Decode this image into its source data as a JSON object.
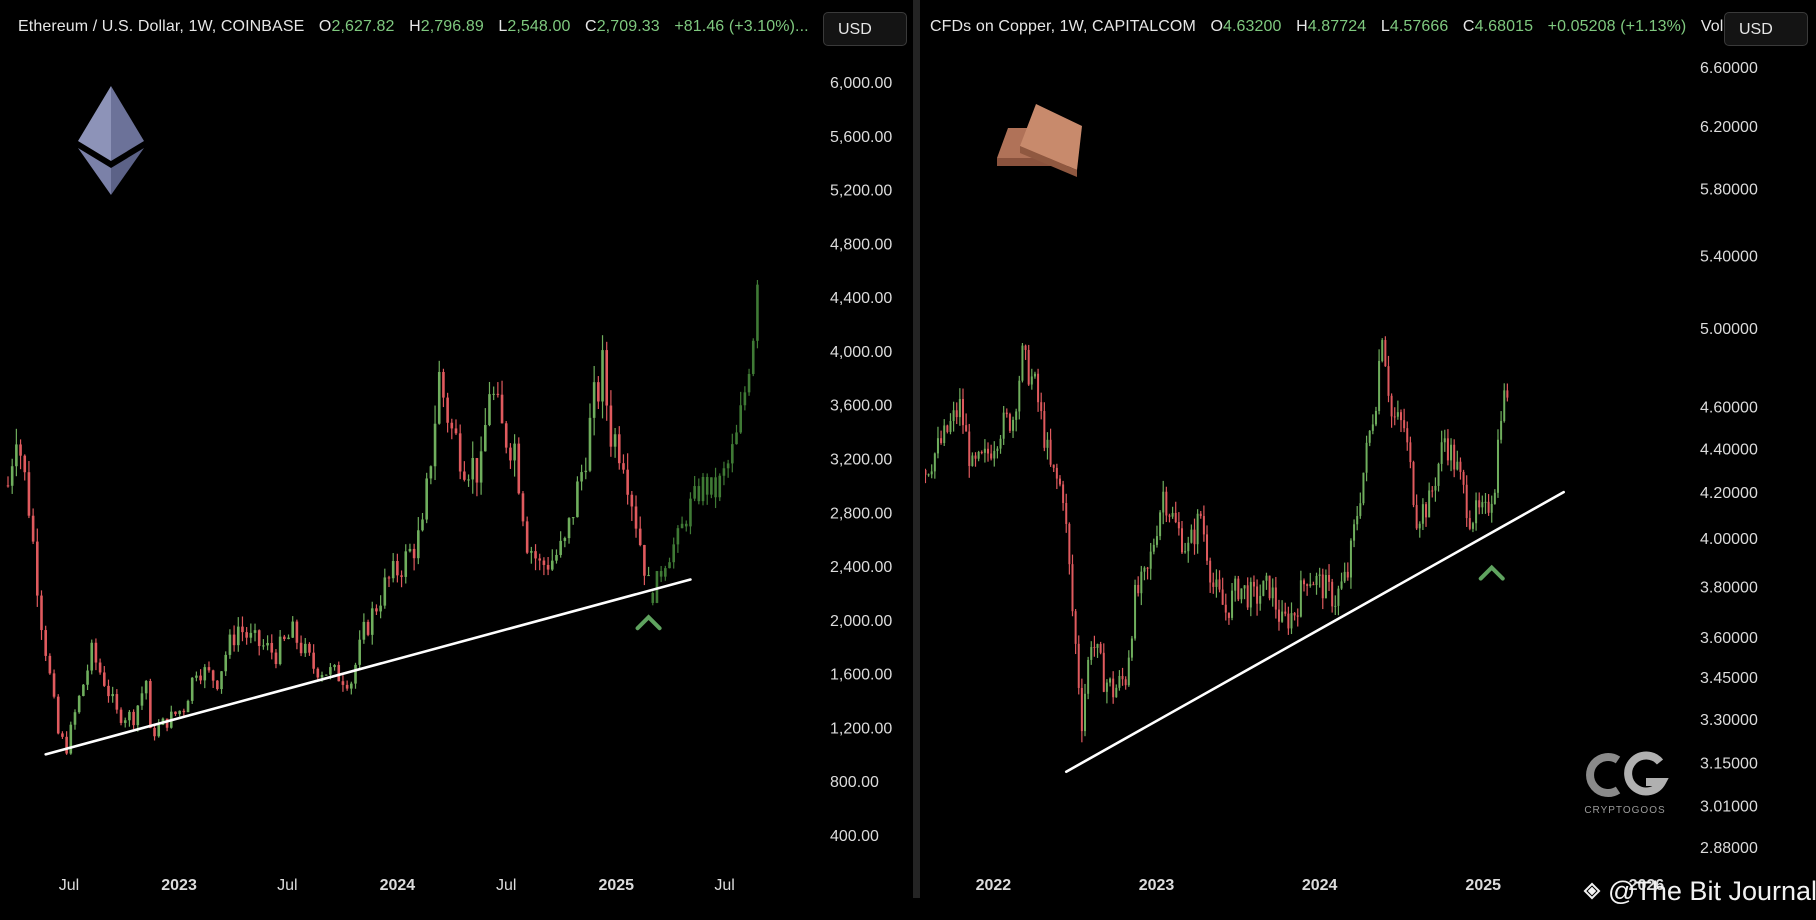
{
  "left": {
    "header": {
      "title": "Ethereum / U.S. Dollar, 1W, COINBASE",
      "o_label": "O",
      "o": "2,627.82",
      "h_label": "H",
      "h": "2,796.89",
      "l_label": "L",
      "l": "2,548.00",
      "c_label": "C",
      "c": "2,709.33",
      "change": "+81.46 (+3.10%)..."
    },
    "currency": "USD"
  },
  "right": {
    "header": {
      "title": "CFDs on Copper, 1W, CAPITALCOM",
      "o_label": "O",
      "o": "4.63200",
      "h_label": "H",
      "h": "4.87724",
      "l_label": "L",
      "l": "4.57666",
      "c_label": "C",
      "c": "4.68015",
      "change": "+0.05208 (+1.13%)",
      "extra": "Vol..."
    },
    "currency": "USD"
  },
  "watermark": "@The Bit Journal",
  "logo_text": "CRYPTOGOOS",
  "colors": {
    "up": "#6fae5d",
    "down": "#e05a5e",
    "projection": "#3f7a35",
    "trendline": "#ffffff",
    "marker": "#5fa35f"
  },
  "icons": [
    "ethereum-logo-icon",
    "copper-bars-icon",
    "cryptogoos-logo-icon",
    "binance-square-icon"
  ],
  "chart_data": [
    {
      "type": "candlestick",
      "title": "Ethereum / U.S. Dollar, 1W, COINBASE",
      "y_ticks": [
        6000,
        5600,
        5200,
        4800,
        4400,
        4000,
        3600,
        3200,
        2800,
        2400,
        2000,
        1600,
        1200,
        800,
        400
      ],
      "y_tick_labels": [
        "6,000.00",
        "5,600.00",
        "5,200.00",
        "4,800.00",
        "4,400.00",
        "4,000.00",
        "3,600.00",
        "3,200.00",
        "2,800.00",
        "2,400.00",
        "2,000.00",
        "1,600.00",
        "1,200.00",
        "800.00",
        "400.00"
      ],
      "ylim": [
        400,
        6000
      ],
      "x_tick_labels": [
        "Jul",
        "2023",
        "Jul",
        "2024",
        "Jul",
        "2025",
        "Jul"
      ],
      "x_tick_bold": [
        false,
        true,
        false,
        true,
        false,
        true,
        false
      ],
      "x_tick_dates": [
        "2022-07-01",
        "2023-01-01",
        "2023-07-01",
        "2024-01-01",
        "2024-07-01",
        "2025-01-01",
        "2025-07-01"
      ],
      "xlim": [
        "2022-03-21",
        "2025-09-15"
      ],
      "price_path": [
        [
          "2022-03-21",
          3000
        ],
        [
          "2022-04-04",
          3450
        ],
        [
          "2022-04-25",
          2850
        ],
        [
          "2022-05-16",
          2000
        ],
        [
          "2022-06-13",
          1150
        ],
        [
          "2022-06-27",
          1050
        ],
        [
          "2022-07-11",
          1300
        ],
        [
          "2022-08-08",
          1750
        ],
        [
          "2022-08-29",
          1550
        ],
        [
          "2022-09-19",
          1300
        ],
        [
          "2022-10-17",
          1280
        ],
        [
          "2022-11-07",
          1550
        ],
        [
          "2022-11-14",
          1150
        ],
        [
          "2022-12-12",
          1250
        ],
        [
          "2023-01-09",
          1350
        ],
        [
          "2023-01-30",
          1650
        ],
        [
          "2023-03-06",
          1550
        ],
        [
          "2023-03-20",
          1750
        ],
        [
          "2023-04-10",
          1950
        ],
        [
          "2023-05-01",
          1850
        ],
        [
          "2023-06-12",
          1750
        ],
        [
          "2023-07-10",
          1900
        ],
        [
          "2023-08-14",
          1650
        ],
        [
          "2023-09-18",
          1600
        ],
        [
          "2023-10-16",
          1550
        ],
        [
          "2023-11-06",
          1900
        ],
        [
          "2023-12-11",
          2250
        ],
        [
          "2024-01-15",
          2450
        ],
        [
          "2024-02-12",
          2650
        ],
        [
          "2024-03-11",
          3800
        ],
        [
          "2024-04-01",
          3400
        ],
        [
          "2024-04-22",
          3200
        ],
        [
          "2024-05-20",
          3100
        ],
        [
          "2024-06-03",
          3750
        ],
        [
          "2024-06-24",
          3400
        ],
        [
          "2024-07-15",
          3300
        ],
        [
          "2024-08-05",
          2600
        ],
        [
          "2024-08-26",
          2400
        ],
        [
          "2024-09-16",
          2450
        ],
        [
          "2024-10-07",
          2550
        ],
        [
          "2024-11-04",
          3100
        ],
        [
          "2024-11-25",
          3600
        ],
        [
          "2024-12-09",
          3850
        ],
        [
          "2024-12-23",
          3400
        ],
        [
          "2025-01-13",
          3250
        ],
        [
          "2025-02-03",
          2750
        ],
        [
          "2025-02-24",
          2250
        ]
      ],
      "projection_path": [
        [
          "2025-03-03",
          2200
        ],
        [
          "2025-03-24",
          2450
        ],
        [
          "2025-04-14",
          2600
        ],
        [
          "2025-05-05",
          2850
        ],
        [
          "2025-05-26",
          3000
        ],
        [
          "2025-06-16",
          2950
        ],
        [
          "2025-07-07",
          3150
        ],
        [
          "2025-07-21",
          3350
        ],
        [
          "2025-08-04",
          3700
        ],
        [
          "2025-08-18",
          4150
        ],
        [
          "2025-08-25",
          4600
        ]
      ],
      "trendline": {
        "start": [
          "2022-05-23",
          1000
        ],
        "end": [
          "2025-05-05",
          2300
        ]
      },
      "bounce_marker": {
        "date": "2025-02-24",
        "price": 1990
      }
    },
    {
      "type": "candlestick",
      "title": "CFDs on Copper, 1W, CAPITALCOM",
      "y_ticks": [
        6.6,
        6.2,
        5.8,
        5.4,
        5.0,
        4.6,
        4.4,
        4.2,
        4.0,
        3.8,
        3.6,
        3.45,
        3.3,
        3.15,
        3.01,
        2.88
      ],
      "y_tick_labels": [
        "6.60000",
        "6.20000",
        "5.80000",
        "5.40000",
        "5.00000",
        "4.60000",
        "4.40000",
        "4.20000",
        "4.00000",
        "3.80000",
        "3.60000",
        "3.45000",
        "3.30000",
        "3.15000",
        "3.01000",
        "2.88000"
      ],
      "y_scale": "log",
      "ylim": [
        2.88,
        6.6
      ],
      "x_tick_labels": [
        "2022",
        "2023",
        "2024",
        "2025",
        "2026"
      ],
      "x_tick_bold": [
        true,
        true,
        true,
        true,
        true
      ],
      "x_tick_dates": [
        "2022-01-01",
        "2023-01-01",
        "2024-01-01",
        "2025-01-01",
        "2026-01-01"
      ],
      "xlim": [
        "2021-08-01",
        "2026-05-01"
      ],
      "price_path": [
        [
          "2021-08-02",
          4.3
        ],
        [
          "2021-09-13",
          4.45
        ],
        [
          "2021-10-18",
          4.6
        ],
        [
          "2021-11-15",
          4.3
        ],
        [
          "2021-12-13",
          4.35
        ],
        [
          "2022-01-17",
          4.5
        ],
        [
          "2022-02-14",
          4.55
        ],
        [
          "2022-03-07",
          4.85
        ],
        [
          "2022-04-04",
          4.7
        ],
        [
          "2022-05-09",
          4.3
        ],
        [
          "2022-06-06",
          4.2
        ],
        [
          "2022-06-27",
          3.7
        ],
        [
          "2022-07-18",
          3.3
        ],
        [
          "2022-08-08",
          3.6
        ],
        [
          "2022-09-05",
          3.45
        ],
        [
          "2022-09-26",
          3.4
        ],
        [
          "2022-10-24",
          3.45
        ],
        [
          "2022-11-14",
          3.75
        ],
        [
          "2022-12-12",
          3.85
        ],
        [
          "2023-01-16",
          4.2
        ],
        [
          "2023-02-13",
          4.05
        ],
        [
          "2023-03-13",
          3.95
        ],
        [
          "2023-04-10",
          4.1
        ],
        [
          "2023-05-08",
          3.8
        ],
        [
          "2023-06-05",
          3.7
        ],
        [
          "2023-07-03",
          3.8
        ],
        [
          "2023-08-07",
          3.75
        ],
        [
          "2023-09-11",
          3.8
        ],
        [
          "2023-10-09",
          3.65
        ],
        [
          "2023-11-06",
          3.7
        ],
        [
          "2023-12-04",
          3.85
        ],
        [
          "2024-01-08",
          3.8
        ],
        [
          "2024-02-05",
          3.75
        ],
        [
          "2024-03-04",
          3.85
        ],
        [
          "2024-04-01",
          4.2
        ],
        [
          "2024-05-06",
          4.65
        ],
        [
          "2024-05-20",
          5.0
        ],
        [
          "2024-06-10",
          4.55
        ],
        [
          "2024-07-08",
          4.5
        ],
        [
          "2024-08-05",
          4.1
        ],
        [
          "2024-09-02",
          4.15
        ],
        [
          "2024-10-07",
          4.45
        ],
        [
          "2024-11-04",
          4.3
        ],
        [
          "2024-12-02",
          4.1
        ],
        [
          "2025-01-06",
          4.1
        ],
        [
          "2025-01-27",
          4.25
        ],
        [
          "2025-02-10",
          4.6
        ],
        [
          "2025-02-24",
          4.68
        ]
      ],
      "trendline": {
        "start": [
          "2022-06-13",
          3.12
        ],
        "end": [
          "2025-06-30",
          4.2
        ]
      },
      "bounce_marker": {
        "date": "2025-01-20",
        "price": 3.86
      }
    }
  ]
}
